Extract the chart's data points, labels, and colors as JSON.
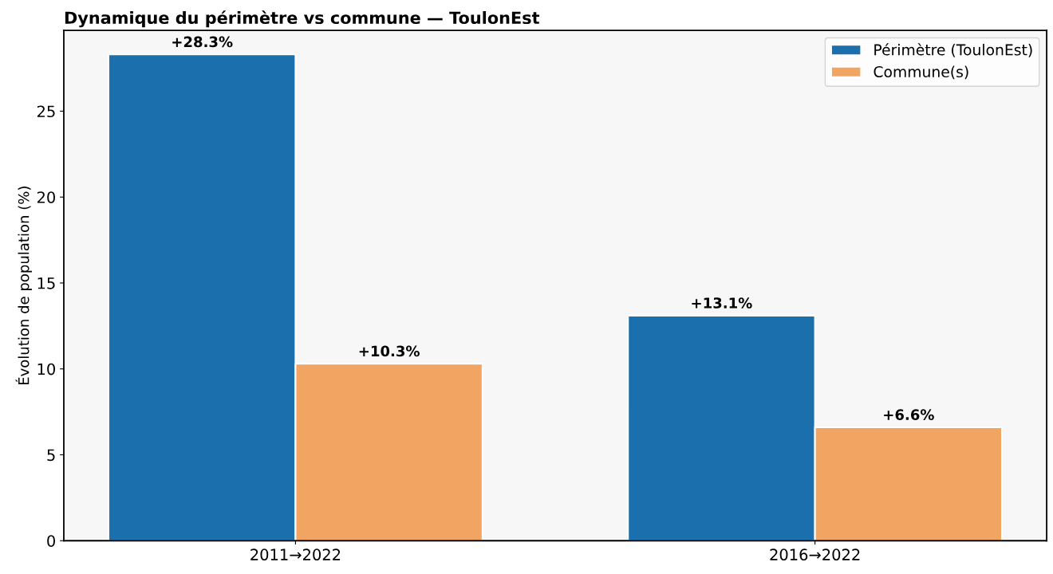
{
  "chart_data": {
    "type": "bar",
    "title": "Dynamique du périmètre vs commune — ToulonEst",
    "ylabel": "Évolution de population (%)",
    "categories": [
      "2011→2022",
      "2016→2022"
    ],
    "series": [
      {
        "name": "Périmètre (ToulonEst)",
        "color": "#1b6fad",
        "values": [
          28.3,
          13.1
        ],
        "value_labels": [
          "+28.3%",
          "+13.1%"
        ]
      },
      {
        "name": "Commune(s)",
        "color": "#f2a462",
        "values": [
          10.3,
          6.6
        ],
        "value_labels": [
          "+10.3%",
          "+6.6%"
        ]
      }
    ],
    "ylim": [
      0,
      29.7
    ],
    "yticks": [
      0,
      5,
      10,
      15,
      20,
      25
    ],
    "grid": false,
    "legend": "top right"
  }
}
